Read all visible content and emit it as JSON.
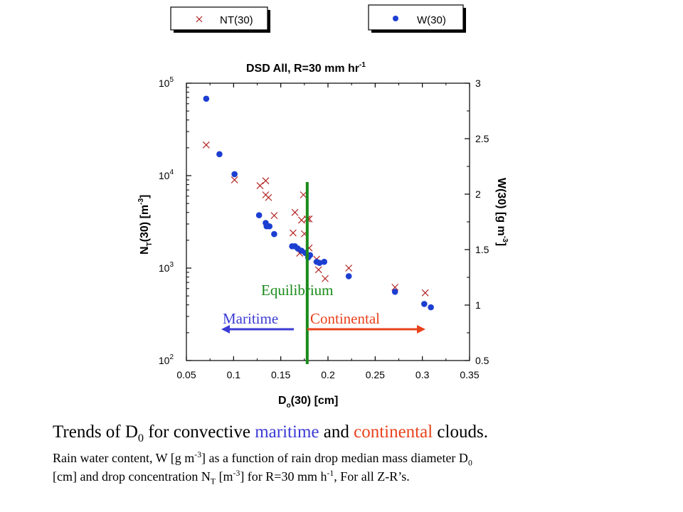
{
  "chart_data": {
    "type": "scatter",
    "title": "DSD  All, R=30 mm hr",
    "title_sup": "-1",
    "xlabel": "D",
    "xlabel_sub": "o",
    "xlabel_rest": "(30) [cm]",
    "ylabel_left": "N",
    "ylabel_left_sub": "T",
    "ylabel_left_rest": "(30) [m",
    "ylabel_left_sup": "-3",
    "ylabel_left_end": "]",
    "ylabel_right": "W(30) [g m",
    "ylabel_right_sup": "-3",
    "ylabel_right_end": "]",
    "xlim": [
      0.05,
      0.35
    ],
    "ylim_left": [
      100,
      100000
    ],
    "yscale_left": "log",
    "ylim_right": [
      0.5,
      3
    ],
    "grid": false,
    "x_ticks": [
      "0.05",
      "0.1",
      "0.15",
      "0.2",
      "0.25",
      "0.3",
      "0.35"
    ],
    "y_left_ticks": [
      {
        "base": "10",
        "exp": "2"
      },
      {
        "base": "10",
        "exp": "3"
      },
      {
        "base": "10",
        "exp": "4"
      },
      {
        "base": "10",
        "exp": "5"
      }
    ],
    "y_right_ticks": [
      "0.5",
      "1",
      "1.5",
      "2",
      "2.5",
      "3"
    ],
    "legend": [
      {
        "label": "NT(30)",
        "marker": "x",
        "color": "#b22222",
        "axis": "left"
      },
      {
        "label": "W(30)",
        "marker": "circle",
        "color": "#1c3fd1",
        "axis": "right"
      }
    ],
    "series": [
      {
        "name": "NT(30)",
        "axis": "left",
        "points": [
          [
            0.071,
            21500
          ],
          [
            0.101,
            9000
          ],
          [
            0.128,
            7800
          ],
          [
            0.134,
            8800
          ],
          [
            0.134,
            6200
          ],
          [
            0.137,
            5800
          ],
          [
            0.143,
            3700
          ],
          [
            0.163,
            2400
          ],
          [
            0.165,
            4000
          ],
          [
            0.17,
            1450
          ],
          [
            0.172,
            3300
          ],
          [
            0.174,
            6200
          ],
          [
            0.175,
            2350
          ],
          [
            0.178,
            3400
          ],
          [
            0.18,
            1650
          ],
          [
            0.18,
            3400
          ],
          [
            0.188,
            1250
          ],
          [
            0.19,
            960
          ],
          [
            0.197,
            770
          ],
          [
            0.222,
            1000
          ],
          [
            0.271,
            620
          ],
          [
            0.303,
            540
          ]
        ]
      },
      {
        "name": "W(30)",
        "axis": "right",
        "points": [
          [
            0.071,
            2.86
          ],
          [
            0.085,
            2.36
          ],
          [
            0.101,
            2.18
          ],
          [
            0.127,
            1.81
          ],
          [
            0.134,
            1.74
          ],
          [
            0.135,
            1.71
          ],
          [
            0.138,
            1.71
          ],
          [
            0.143,
            1.64
          ],
          [
            0.162,
            1.53
          ],
          [
            0.165,
            1.53
          ],
          [
            0.168,
            1.51
          ],
          [
            0.172,
            1.49
          ],
          [
            0.176,
            1.47
          ],
          [
            0.179,
            1.43
          ],
          [
            0.181,
            1.45
          ],
          [
            0.188,
            1.39
          ],
          [
            0.191,
            1.38
          ],
          [
            0.196,
            1.39
          ],
          [
            0.222,
            1.26
          ],
          [
            0.271,
            1.12
          ],
          [
            0.302,
            1.01
          ],
          [
            0.309,
            0.98
          ]
        ]
      }
    ],
    "annotations": {
      "equilibrium": {
        "text": "Equilibrium",
        "x": 0.178,
        "color": "#1a8a1a"
      },
      "maritime": {
        "text": "Maritime",
        "color": "#3b3bd4"
      },
      "continental": {
        "text": "Continental",
        "color": "#e8421c"
      }
    }
  },
  "caption": {
    "title_pre": "Trends of D",
    "title_sub": "0",
    "title_mid": " for convective ",
    "title_maritime": "maritime",
    "title_and": " and ",
    "title_continental": "continental",
    "title_end": " clouds.",
    "l1_pre": "Rain water content, W [g m",
    "l1_sup": "-3",
    "l1_mid": "] as a function of rain drop median mass diameter D",
    "l1_sub": "0",
    "l2_pre": "[cm] and drop concentration N",
    "l2_sub": "T",
    "l2_mid": " [m",
    "l2_sup": "-3",
    "l2_mid2": "] for R=30 mm h",
    "l2_sup2": "-1",
    "l2_end": ", For all Z-R’s."
  }
}
